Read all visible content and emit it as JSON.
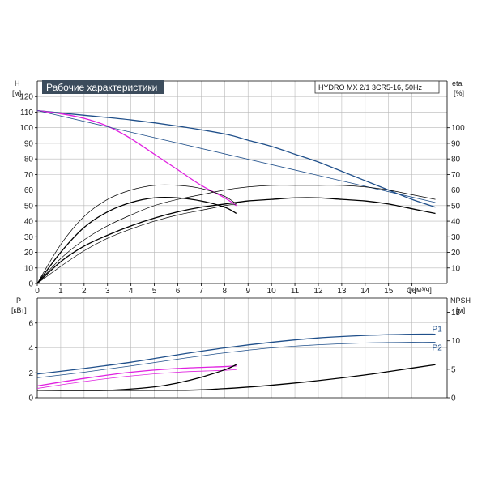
{
  "title": "Рабочие характеристики",
  "pump": "HYDRO MX 2/1 3CR5-16, 50Hz",
  "colors": {
    "pump_curve": "#1f4f8a",
    "combined_curve": "#e020e0",
    "efficiency_curve": "#000000",
    "header_bg": "#3c4c5c"
  },
  "chart_data": [
    {
      "type": "line",
      "panel": "head-efficiency",
      "xlabel": "Q [м³/ч]",
      "ylabel_left": "H\n[м]",
      "ylabel_right": "eta\n[%]",
      "xlim": [
        0,
        17.5
      ],
      "ylim_left": [
        0,
        130
      ],
      "ylim_right": [
        0,
        130
      ],
      "x_ticks": [
        0,
        1,
        2,
        3,
        4,
        5,
        6,
        7,
        8,
        9,
        10,
        11,
        12,
        13,
        14,
        15,
        16
      ],
      "y_ticks_left": [
        0,
        10,
        20,
        30,
        40,
        50,
        60,
        70,
        80,
        90,
        100,
        110,
        120
      ],
      "y_ticks_right": [
        10,
        20,
        30,
        40,
        50,
        60,
        70,
        80,
        90,
        100
      ],
      "series": [
        {
          "key": "head_pump",
          "color": "#1f4f8a",
          "width": 1.3,
          "x": [
            0,
            2,
            4,
            6,
            8,
            9,
            10,
            11,
            12,
            13,
            14,
            15,
            16,
            17
          ],
          "y": [
            111,
            108,
            105,
            101,
            96,
            92,
            88,
            83,
            78,
            72,
            66,
            60,
            54,
            49
          ]
        },
        {
          "key": "head_combined",
          "color": "#e020e0",
          "width": 1.3,
          "x": [
            0,
            1,
            2,
            3,
            4,
            5,
            6,
            7,
            8,
            8.5
          ],
          "y": [
            111,
            109,
            106,
            101,
            93,
            83,
            73,
            63,
            55,
            50
          ]
        },
        {
          "key": "head_thin",
          "color": "#1f4f8a",
          "width": 0.8,
          "x": [
            0,
            17
          ],
          "y": [
            111,
            52
          ]
        },
        {
          "key": "eta_pump_total",
          "color": "#000000",
          "width": 1.3,
          "x": [
            0,
            1,
            2,
            3,
            4,
            5,
            6,
            7,
            8,
            9,
            10,
            11,
            12,
            13,
            14,
            15,
            16,
            17
          ],
          "y": [
            0,
            14,
            24,
            31,
            37,
            42,
            46,
            49,
            51,
            53,
            54,
            55,
            55,
            54,
            53,
            51,
            48,
            45
          ]
        },
        {
          "key": "eta_pump_thin",
          "color": "#000000",
          "width": 0.7,
          "x": [
            0,
            1,
            2,
            3,
            4,
            5,
            6,
            7,
            8,
            9,
            10,
            11,
            12,
            13,
            14,
            15,
            16,
            17
          ],
          "y": [
            0,
            16,
            28,
            37,
            44,
            50,
            54,
            57,
            60,
            62,
            63,
            63,
            63,
            63,
            62,
            60,
            57,
            54
          ]
        },
        {
          "key": "eta_combined_total",
          "color": "#000000",
          "width": 1.3,
          "x": [
            0,
            1,
            2,
            3,
            4,
            5,
            6,
            7,
            8,
            8.5
          ],
          "y": [
            0,
            20,
            36,
            46,
            52,
            55,
            55,
            53,
            49,
            45
          ]
        },
        {
          "key": "eta_combined_thin",
          "color": "#000000",
          "width": 0.7,
          "x": [
            0,
            1,
            2,
            3,
            4,
            5,
            6,
            7,
            8,
            8.5
          ],
          "y": [
            0,
            25,
            43,
            54,
            60,
            63,
            63,
            61,
            56,
            51
          ]
        },
        {
          "key": "eta_thin_extra",
          "color": "#000000",
          "width": 0.7,
          "x": [
            0,
            1,
            2,
            3,
            4,
            5,
            6,
            7,
            8,
            8.5
          ],
          "y": [
            0,
            11,
            21,
            29,
            35,
            40,
            44,
            47,
            50,
            51
          ]
        }
      ]
    },
    {
      "type": "line",
      "panel": "power-npsh",
      "ylabel_left": "P\n[кВт]",
      "ylabel_right": "NPSH\n[м]",
      "xlim": [
        0,
        17.5
      ],
      "ylim_left": [
        0,
        8
      ],
      "ylim_right": [
        0,
        17.5
      ],
      "y_ticks_left": [
        0,
        2,
        4,
        6
      ],
      "y_ticks_right": [
        0,
        5,
        10,
        15
      ],
      "series": [
        {
          "key": "P1",
          "name": "P1",
          "color": "#1f4f8a",
          "width": 1.3,
          "axis": "left",
          "x": [
            0,
            2,
            4,
            6,
            8,
            10,
            12,
            14,
            16,
            17
          ],
          "y": [
            1.9,
            2.35,
            2.85,
            3.45,
            4.0,
            4.45,
            4.8,
            5.0,
            5.1,
            5.1
          ]
        },
        {
          "key": "P2",
          "name": "P2",
          "color": "#1f4f8a",
          "width": 0.8,
          "axis": "left",
          "x": [
            0,
            2,
            4,
            6,
            8,
            10,
            12,
            14,
            16,
            17
          ],
          "y": [
            1.6,
            2.05,
            2.55,
            3.1,
            3.6,
            4.0,
            4.25,
            4.4,
            4.45,
            4.45
          ]
        },
        {
          "key": "P1_combined",
          "color": "#e020e0",
          "width": 1.3,
          "axis": "left",
          "x": [
            0,
            2,
            4,
            6,
            8,
            8.5
          ],
          "y": [
            0.95,
            1.55,
            2.05,
            2.35,
            2.5,
            2.55
          ]
        },
        {
          "key": "P2_combined",
          "color": "#e020e0",
          "width": 0.8,
          "axis": "left",
          "x": [
            0,
            2,
            4,
            6,
            8,
            8.5
          ],
          "y": [
            0.75,
            1.3,
            1.75,
            2.05,
            2.2,
            2.25
          ]
        },
        {
          "key": "npsh_pump",
          "color": "#000000",
          "width": 1.3,
          "axis": "right",
          "x": [
            0,
            6,
            8,
            10,
            12,
            14,
            16,
            17
          ],
          "y": [
            1.3,
            1.3,
            1.6,
            2.2,
            3.0,
            4.0,
            5.2,
            5.8
          ]
        },
        {
          "key": "npsh_combined",
          "color": "#000000",
          "width": 1.3,
          "axis": "right",
          "x": [
            0,
            3,
            5,
            6,
            7,
            8,
            8.5
          ],
          "y": [
            1.3,
            1.3,
            1.9,
            2.6,
            3.6,
            4.9,
            5.8
          ]
        }
      ]
    }
  ]
}
